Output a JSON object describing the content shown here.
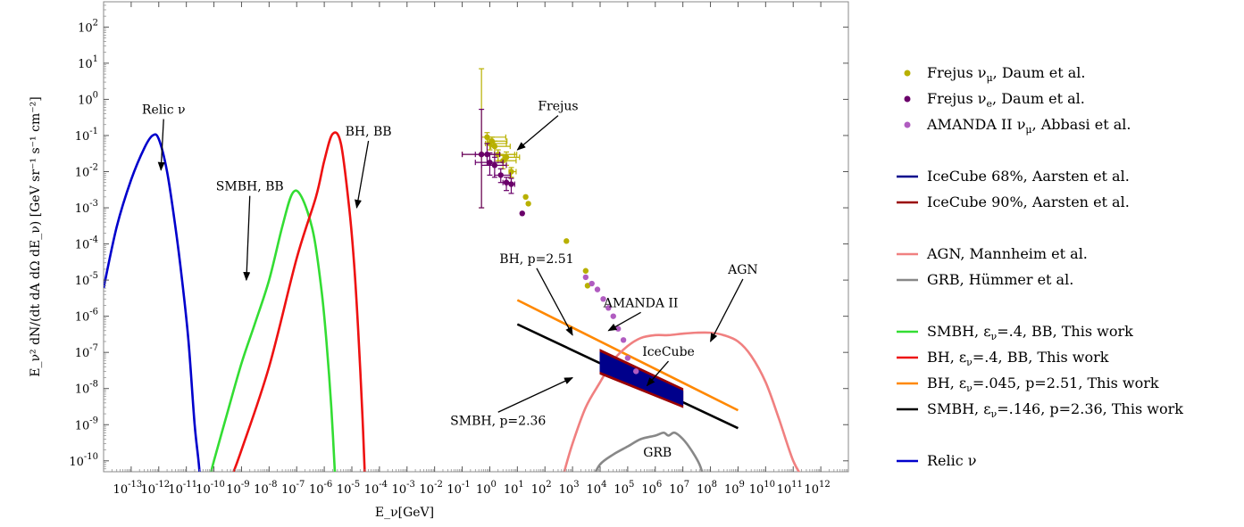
{
  "chart_data": {
    "type": "line",
    "x_scale": "log",
    "y_scale": "log",
    "xlim": [
      1e-14,
      10000000000000.0
    ],
    "ylim": [
      5e-11,
      500
    ],
    "xlabel": "E_ν[GeV]",
    "ylabel": "E_ν² dN/(dt dA dΩ dE_ν) [GeV sr⁻¹ s⁻¹ cm⁻²]",
    "x_ticks": [
      "10",
      "10",
      "10",
      "10",
      "10",
      "10",
      "10",
      "10",
      "10",
      "10",
      "10",
      "10",
      "10",
      "10",
      "10",
      "10",
      "10",
      "10",
      "10",
      "10",
      "10",
      "10",
      "10",
      "10",
      "10",
      "10"
    ],
    "x_tick_exponents": [
      "-13",
      "-12",
      "-11",
      "-10",
      "-9",
      "-8",
      "-7",
      "-6",
      "-5",
      "-4",
      "-3",
      "-2",
      "-1",
      "0",
      "1",
      "2",
      "3",
      "4",
      "5",
      "6",
      "7",
      "8",
      "9",
      "10",
      "11",
      "12"
    ],
    "y_ticks": [
      "10",
      "10",
      "10",
      "10",
      "10",
      "10",
      "10",
      "10",
      "10",
      "10",
      "10",
      "10",
      "10"
    ],
    "y_tick_exponents": [
      "2",
      "1",
      "0",
      "-1",
      "-2",
      "-3",
      "-4",
      "-5",
      "-6",
      "-7",
      "-8",
      "-9",
      "-10"
    ],
    "series": [
      {
        "name": "Relic ν",
        "color": "#0000cc",
        "kind": "curve",
        "x": [
          1e-14,
          3e-14,
          1e-13,
          3e-13,
          6e-13,
          1e-12,
          2e-12,
          4e-12,
          7e-12,
          1.2e-11,
          2e-11,
          3e-11,
          4e-11
        ],
        "y": [
          6e-06,
          0.0003,
          0.006,
          0.045,
          0.1,
          0.08,
          0.01,
          0.0003,
          1e-05,
          2e-07,
          1e-09,
          5e-11,
          1e-12
        ]
      },
      {
        "name": "SMBH, ε_ν=.4, BB, This work",
        "color": "#33dd33",
        "kind": "curve",
        "x": [
          8e-11,
          1e-10,
          3e-10,
          1e-09,
          3e-09,
          1e-08,
          3e-08,
          7e-08,
          1.5e-07,
          4e-07,
          8e-07,
          1.2e-06,
          1.8e-06,
          2.5e-06
        ],
        "y": [
          5e-11,
          1e-10,
          2e-09,
          5e-08,
          6e-07,
          1e-05,
          0.0003,
          0.0025,
          0.002,
          0.0002,
          5e-06,
          2e-07,
          3e-09,
          3e-11
        ]
      },
      {
        "name": "BH, ε_ν=.4, BB, This work",
        "color": "#ee1111",
        "kind": "curve",
        "x": [
          4e-10,
          1e-09,
          1e-08,
          1e-07,
          5e-07,
          1e-06,
          2e-06,
          4e-06,
          8e-06,
          1.2e-05,
          1.7e-05,
          2.4e-05,
          3e-05
        ],
        "y": [
          3e-11,
          2e-10,
          4e-08,
          4e-05,
          0.002,
          0.02,
          0.11,
          0.06,
          0.001,
          3e-05,
          4e-07,
          2e-09,
          3e-11
        ]
      },
      {
        "name": "BH, ε_ν=.045, p=2.51, This work",
        "color": "#ff8800",
        "kind": "curve",
        "x": [
          10,
          1000000000.0
        ],
        "y": [
          2.8e-06,
          2.5e-09
        ]
      },
      {
        "name": "SMBH, ε_ν=.146, p=2.36, This work",
        "color": "#000000",
        "kind": "curve",
        "x": [
          10,
          1000000000.0
        ],
        "y": [
          6e-07,
          8e-10
        ]
      },
      {
        "name": "AGN,  Mannheim et al.",
        "color": "#f08080",
        "kind": "curve",
        "x": [
          500.0,
          1000.0,
          3000.0,
          10000.0,
          30000.0,
          100000.0,
          300000.0,
          1000000.0,
          3000000.0,
          10000000.0,
          30000000.0,
          100000000.0,
          300000000.0,
          1000000000.0,
          3000000000.0,
          10000000000.0,
          30000000000.0,
          100000000000.0,
          250000000000.0
        ],
        "y": [
          5e-11,
          3e-10,
          3e-09,
          1.5e-08,
          6e-08,
          1.5e-07,
          2.5e-07,
          3e-07,
          3e-07,
          3.3e-07,
          3.5e-07,
          3.5e-07,
          3e-07,
          2e-07,
          8e-08,
          1.5e-08,
          1.5e-09,
          1e-10,
          3e-11
        ]
      },
      {
        "name": "GRB, Hümmer et al.",
        "color": "#888888",
        "kind": "curve",
        "x": [
          5000.0,
          10000.0,
          30000.0,
          100000.0,
          300000.0,
          1000000.0,
          2000000.0,
          3000000.0,
          5000000.0,
          10000000.0,
          20000000.0,
          40000000.0,
          60000000.0
        ],
        "y": [
          3e-11,
          8e-11,
          1.5e-10,
          2.5e-10,
          4e-10,
          5e-10,
          6e-10,
          5e-10,
          6e-10,
          4e-10,
          2e-10,
          8e-11,
          3e-11
        ]
      },
      {
        "name": "IceCube 90%, Aarsten et al.",
        "color": "#990000",
        "kind": "band",
        "x": [
          10000.0,
          10000000.0
        ],
        "y_low": [
          2.5e-08,
          3e-09
        ],
        "y_high": [
          1.2e-07,
          1e-08
        ]
      },
      {
        "name": "IceCube 68%, Aarsten et al.",
        "color": "#00008b",
        "kind": "band",
        "x": [
          10000.0,
          10000000.0
        ],
        "y_low": [
          3e-08,
          3.5e-09
        ],
        "y_high": [
          1e-07,
          8.5e-09
        ]
      },
      {
        "name": "Frejus ν_μ, Daum et al.",
        "color": "#b8b000",
        "kind": "points",
        "x": [
          0.5,
          0.8,
          1,
          1.2,
          1.5,
          2,
          3,
          4,
          6,
          20,
          25,
          600,
          3000,
          3500
        ],
        "y": [
          0.03,
          0.09,
          0.06,
          0.07,
          0.05,
          0.03,
          0.02,
          0.025,
          0.01,
          0.002,
          0.0013,
          0.00012,
          1.8e-05,
          7e-06
        ],
        "xerr_low": [
          0.4,
          0.3,
          0.3,
          0.3,
          0.4,
          0.5,
          1,
          1,
          1,
          0,
          0,
          0,
          0,
          0
        ],
        "xerr_high": [
          9,
          3,
          3,
          3,
          4,
          6,
          6,
          8,
          3,
          0,
          0,
          0,
          0,
          0
        ],
        "yerr_low": [
          0.029,
          0.03,
          0.02,
          0.02,
          0.02,
          0.01,
          0.008,
          0.01,
          0.003,
          0,
          0,
          0,
          0,
          0
        ],
        "yerr_high": [
          7,
          0.03,
          0.02,
          0.02,
          0.02,
          0.01,
          0.008,
          0.01,
          0.003,
          0,
          0,
          0,
          0,
          0
        ]
      },
      {
        "name": "Frejus ν_e, Daum et al.",
        "color": "#6a006a",
        "kind": "points",
        "x": [
          0.5,
          0.8,
          1,
          1.5,
          2.5,
          4,
          6,
          15
        ],
        "y": [
          0.03,
          0.03,
          0.018,
          0.015,
          0.008,
          0.005,
          0.0045,
          0.0007
        ],
        "xerr_low": [
          0.4,
          0.5,
          0.7,
          1,
          1,
          1,
          2,
          0
        ],
        "xerr_high": [
          1,
          1.5,
          2,
          2.5,
          3,
          2,
          2,
          0
        ],
        "yerr_low": [
          0.029,
          0.015,
          0.01,
          0.008,
          0.003,
          0.002,
          0.002,
          0
        ],
        "yerr_high": [
          0.5,
          0.03,
          0.015,
          0.01,
          0.004,
          0.002,
          0.002,
          0
        ]
      },
      {
        "name": "AMANDA II ν_μ, Abbasi et al.",
        "color": "#b05cc0",
        "kind": "points",
        "x": [
          3000.0,
          5000.0,
          8000.0,
          13000.0,
          20000.0,
          30000.0,
          45000.0,
          70000.0,
          100000.0,
          200000.0
        ],
        "y": [
          1.2e-05,
          8e-06,
          5.5e-06,
          3e-06,
          1.7e-06,
          1e-06,
          4.5e-07,
          2.2e-07,
          7e-08,
          3e-08
        ],
        "xerr_low": [
          0,
          0,
          0,
          0,
          0,
          0,
          0,
          0,
          0,
          0
        ],
        "xerr_high": [
          0,
          0,
          0,
          0,
          0,
          0,
          0,
          0,
          0,
          0
        ],
        "yerr_low": [
          0,
          0,
          0,
          0,
          0,
          0,
          0,
          0,
          0,
          0
        ],
        "yerr_high": [
          0,
          0,
          0,
          0,
          0,
          0,
          0,
          0,
          0,
          0
        ]
      }
    ],
    "annotations": [
      {
        "text": "Relic ν",
        "x": 1.5e-12,
        "y": 0.4,
        "point_x": 1.2e-12,
        "point_y": 0.011
      },
      {
        "text": "BH, BB",
        "x": 4e-05,
        "y": 0.1,
        "point_x": 1.5e-05,
        "point_y": 0.001
      },
      {
        "text": "SMBH, BB",
        "x": 2e-09,
        "y": 0.003,
        "point_x": 1.5e-09,
        "point_y": 1e-05
      },
      {
        "text": "Frejus",
        "x": 300.0,
        "y": 0.5,
        "point_x": 10.0,
        "point_y": 0.04
      },
      {
        "text": "BH, p=2.51",
        "x": 50.0,
        "y": 3e-05,
        "point_x": 1000.0,
        "point_y": 3e-07
      },
      {
        "text": "AMANDA II",
        "x": 300000.0,
        "y": 1.8e-06,
        "point_x": 20000.0,
        "point_y": 4e-07
      },
      {
        "text": "AGN",
        "x": 1500000000.0,
        "y": 1.5e-05,
        "point_x": 100000000.0,
        "point_y": 2e-07
      },
      {
        "text": "IceCube",
        "x": 3000000.0,
        "y": 8e-08,
        "point_x": 500000.0,
        "point_y": 1.2e-08
      },
      {
        "text": "SMBH, p=2.36",
        "x": 2.0,
        "y": 1e-09,
        "point_x": 1000.0,
        "point_y": 2e-08
      },
      {
        "text": "GRB",
        "x": 1200000.0,
        "y": 1.3e-10,
        "point_x": null,
        "point_y": null
      }
    ]
  },
  "legend": {
    "placement": "right",
    "groups": [
      [
        {
          "kind": "point",
          "color": "#b8b000",
          "label": "Frejus ν",
          "sub": "μ",
          "suffix": ", Daum et al."
        },
        {
          "kind": "point",
          "color": "#6a006a",
          "label": "Frejus ν",
          "sub": "e",
          "suffix": ", Daum et al."
        },
        {
          "kind": "point",
          "color": "#b05cc0",
          "label": "AMANDA II ν",
          "sub": "μ",
          "suffix": ", Abbasi et al."
        }
      ],
      [
        {
          "kind": "line",
          "color": "#00008b",
          "label": "IceCube 68%, Aarsten et al.",
          "sub": "",
          "suffix": ""
        },
        {
          "kind": "line",
          "color": "#990000",
          "label": "IceCube 90%, Aarsten et al.",
          "sub": "",
          "suffix": ""
        }
      ],
      [
        {
          "kind": "line",
          "color": "#f08080",
          "label": "AGN,  Mannheim et al.",
          "sub": "",
          "suffix": ""
        },
        {
          "kind": "line",
          "color": "#888888",
          "label": "GRB, Hümmer et al.",
          "sub": "",
          "suffix": ""
        }
      ],
      [
        {
          "kind": "line",
          "color": "#33dd33",
          "label": "SMBH, ε",
          "sub": "ν",
          "suffix": "=.4, BB, This work"
        },
        {
          "kind": "line",
          "color": "#ee1111",
          "label": "BH, ε",
          "sub": "ν",
          "suffix": "=.4, BB, This work"
        },
        {
          "kind": "line",
          "color": "#ff8800",
          "label": "BH, ε",
          "sub": "ν",
          "suffix": "=.045, p=2.51, This work"
        },
        {
          "kind": "line",
          "color": "#000000",
          "label": "SMBH, ε",
          "sub": "ν",
          "suffix": "=.146, p=2.36, This work"
        }
      ],
      [
        {
          "kind": "line",
          "color": "#0000cc",
          "label": "Relic ν",
          "sub": "",
          "suffix": ""
        }
      ]
    ]
  }
}
